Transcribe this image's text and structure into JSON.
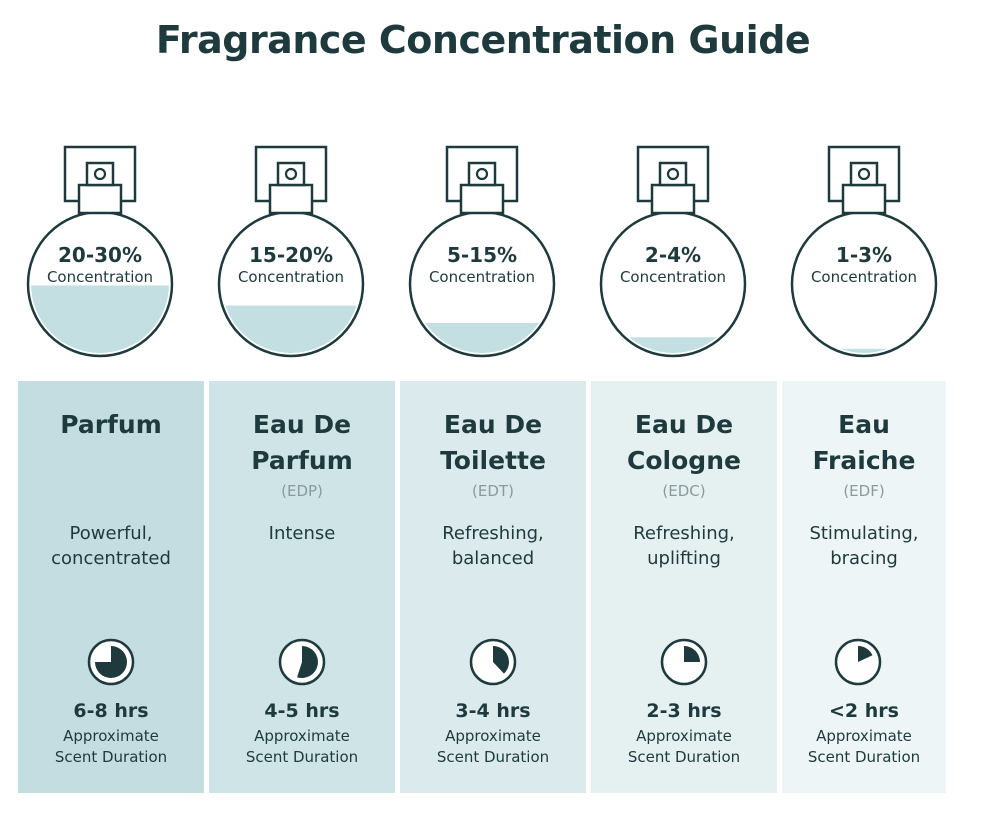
{
  "title": "Fragrance Concentration Guide",
  "colors": {
    "ink": "#1e3a3c",
    "liquid": "#c3dfe2",
    "muted": "#8a9a9c"
  },
  "types": [
    {
      "concentration": "20-30%",
      "concentration_label": "Concentration",
      "fill_level": 0.49,
      "name_line1": "Parfum",
      "name_line2": "",
      "abbreviation": "",
      "desc_line1": "Powerful,",
      "desc_line2": "concentrated",
      "duration": "6-8 hrs",
      "duration_label1": "Approximate",
      "duration_label2": "Scent Duration",
      "clock_fraction": 0.75,
      "panel_color": "#c4dde0"
    },
    {
      "concentration": "15-20%",
      "concentration_label": "Concentration",
      "fill_level": 0.35,
      "name_line1": "Eau De",
      "name_line2": "Parfum",
      "abbreviation": "(EDP)",
      "desc_line1": "Intense",
      "desc_line2": "",
      "duration": "4-5 hrs",
      "duration_label1": "Approximate",
      "duration_label2": "Scent Duration",
      "clock_fraction": 0.55,
      "panel_color": "#cfe4e6"
    },
    {
      "concentration": "5-15%",
      "concentration_label": "Concentration",
      "fill_level": 0.23,
      "name_line1": "Eau De",
      "name_line2": "Toilette",
      "abbreviation": "(EDT)",
      "desc_line1": "Refreshing,",
      "desc_line2": "balanced",
      "duration": "3-4 hrs",
      "duration_label1": "Approximate",
      "duration_label2": "Scent Duration",
      "clock_fraction": 0.38,
      "panel_color": "#dbeaec"
    },
    {
      "concentration": "2-4%",
      "concentration_label": "Concentration",
      "fill_level": 0.13,
      "name_line1": "Eau De",
      "name_line2": "Cologne",
      "abbreviation": "(EDC)",
      "desc_line1": "Refreshing,",
      "desc_line2": "uplifting",
      "duration": "2-3 hrs",
      "duration_label1": "Approximate",
      "duration_label2": "Scent Duration",
      "clock_fraction": 0.25,
      "panel_color": "#e5f0f1"
    },
    {
      "concentration": "1-3%",
      "concentration_label": "Concentration",
      "fill_level": 0.05,
      "name_line1": "Eau",
      "name_line2": "Fraiche",
      "abbreviation": "(EDF)",
      "desc_line1": "Stimulating,",
      "desc_line2": "bracing",
      "duration": "<2 hrs",
      "duration_label1": "Approximate",
      "duration_label2": "Scent Duration",
      "clock_fraction": 0.18,
      "panel_color": "#eef5f6"
    }
  ]
}
